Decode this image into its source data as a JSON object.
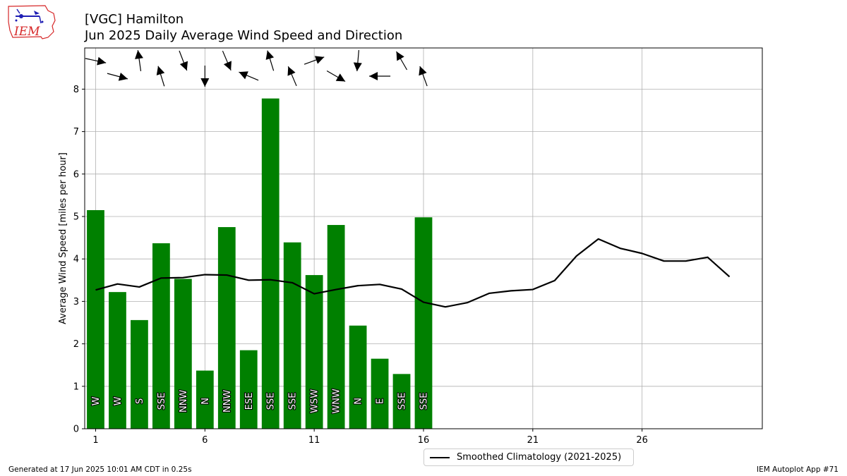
{
  "title": "[VGC] Hamilton",
  "subtitle": "Jun 2025 Daily Average Wind Speed and Direction",
  "logo_text": "IEM",
  "footer_left": "Generated at 17 Jun 2025 10:01 AM CDT in 0.25s",
  "footer_right": "IEM Autoplot App #71",
  "colors": {
    "bar": "#008000",
    "line": "#000000",
    "grid": "#b0b0b0",
    "logo_red": "#d62728",
    "logo_blue": "#1f1fb4"
  },
  "chart_data": {
    "type": "bar",
    "ylabel": "Average Wind Speed [miles per hour]",
    "xlabel": "",
    "xlim": [
      0.5,
      31.5
    ],
    "ylim": [
      0,
      8.97
    ],
    "xticks": [
      1,
      6,
      11,
      16,
      21,
      26
    ],
    "yticks": [
      0,
      1,
      2,
      3,
      4,
      5,
      6,
      7,
      8
    ],
    "grid": true,
    "legend_position": "bottom-center",
    "bars": {
      "days": [
        1,
        2,
        3,
        4,
        5,
        6,
        7,
        8,
        9,
        10,
        11,
        12,
        13,
        14,
        15,
        16
      ],
      "values": [
        5.15,
        3.22,
        2.56,
        4.37,
        3.53,
        1.37,
        4.75,
        1.85,
        7.78,
        4.39,
        3.62,
        4.8,
        2.43,
        1.65,
        1.29,
        4.98
      ],
      "direction_labels": [
        "W",
        "W",
        "S",
        "SSE",
        "NNW",
        "N",
        "NNW",
        "ESE",
        "SSE",
        "SSE",
        "WSW",
        "WNW",
        "N",
        "E",
        "SSE",
        "SSE"
      ],
      "direction_degrees": [
        282,
        285,
        172,
        163,
        339,
        0,
        337,
        113,
        163,
        157,
        250,
        300,
        5,
        90,
        150,
        160
      ]
    },
    "series": [
      {
        "name": "Smoothed Climatology (2021-2025)",
        "x": [
          1,
          2,
          3,
          4,
          5,
          6,
          7,
          8,
          9,
          10,
          11,
          12,
          13,
          14,
          15,
          16,
          17,
          18,
          19,
          20,
          21,
          22,
          23,
          24,
          25,
          26,
          27,
          28,
          29,
          30
        ],
        "values": [
          3.27,
          3.41,
          3.34,
          3.55,
          3.56,
          3.63,
          3.62,
          3.5,
          3.51,
          3.44,
          3.18,
          3.28,
          3.37,
          3.4,
          3.29,
          2.98,
          2.87,
          2.97,
          3.19,
          3.25,
          3.28,
          3.49,
          4.07,
          4.47,
          4.25,
          4.13,
          3.95,
          3.95,
          4.04,
          3.58
        ]
      }
    ]
  }
}
